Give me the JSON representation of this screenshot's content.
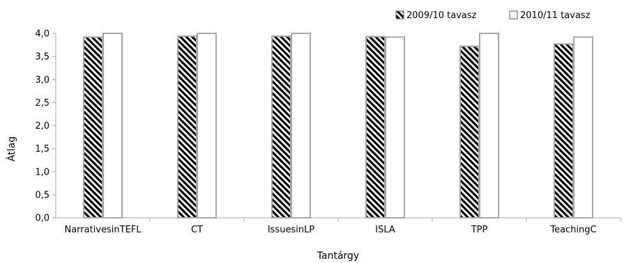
{
  "chart_data": {
    "type": "bar",
    "title": "",
    "xlabel": "Tantárgy",
    "ylabel": "Átlag",
    "ylim": [
      0,
      4
    ],
    "yticks": [
      "0,0",
      "0,5",
      "1,0",
      "1,5",
      "2,0",
      "2,5",
      "3,0",
      "3,5",
      "4,0"
    ],
    "categories": [
      "NarrativesinTEFL",
      "CT",
      "IssuesinLP",
      "ISLA",
      "TPP",
      "TeachingC"
    ],
    "series": [
      {
        "name": "2009/10 tavasz",
        "values": [
          3.92,
          3.94,
          3.94,
          3.93,
          3.72,
          3.77
        ],
        "pattern": "hatched",
        "color": "#000000"
      },
      {
        "name": "2010/11 tavasz",
        "values": [
          4.0,
          4.0,
          4.0,
          3.92,
          4.0,
          3.92
        ],
        "pattern": "solid",
        "color": "#ffffff"
      }
    ],
    "grid": false,
    "legend_position": "top-right",
    "bar_border_color": "#a6a6a6",
    "axis_color": "#a6a6a6"
  }
}
